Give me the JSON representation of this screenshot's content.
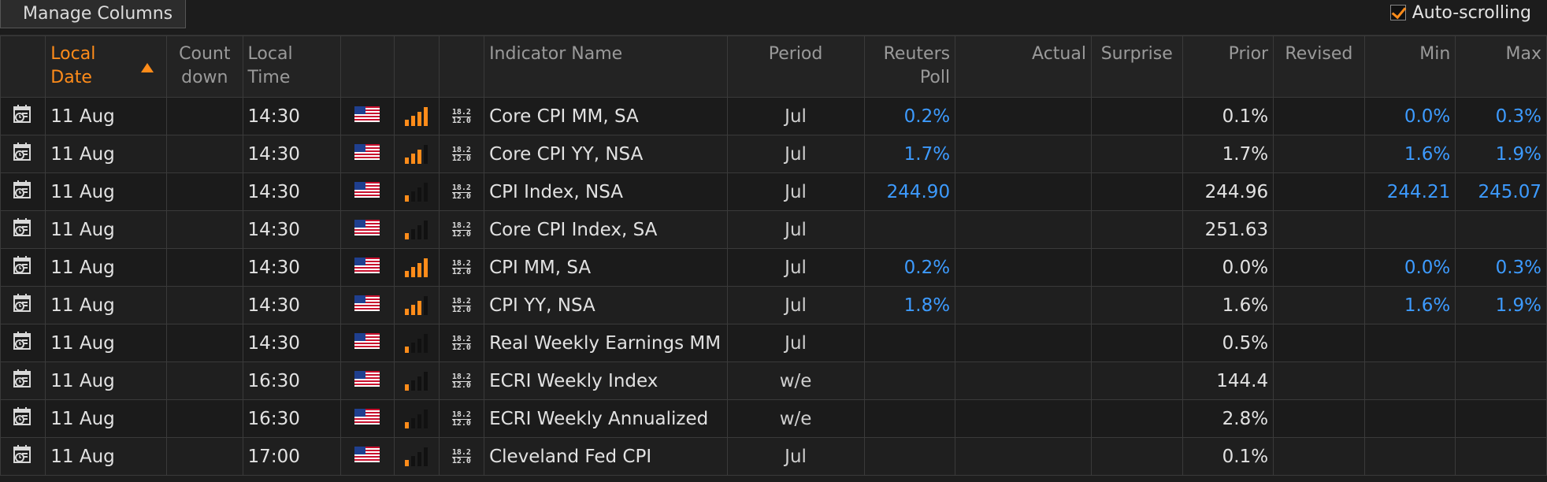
{
  "toolbar": {
    "manage_columns_label": "Manage Columns",
    "auto_scroll_label": "Auto-scrolling",
    "auto_scroll_checked": true
  },
  "columns": {
    "local_date": "Local Date",
    "countdown": "Count down",
    "local_time": "Local Time",
    "indicator": "Indicator Name",
    "period": "Period",
    "poll": "Reuters Poll",
    "actual": "Actual",
    "surprise": "Surprise",
    "prior": "Prior",
    "revised": "Revised",
    "min": "Min",
    "max": "Max"
  },
  "colors": {
    "accent": "#ff8c1a",
    "value_blue": "#3d9bff",
    "bar_inactive": "#111111"
  },
  "rows": [
    {
      "date": "11 Aug",
      "countdown": "",
      "time": "14:30",
      "importance": 3,
      "bar_color": "#ff8c1a",
      "name": "Core CPI MM, SA",
      "period": "Jul",
      "poll": "0.2%",
      "actual": "",
      "surprise": "",
      "prior": "0.1%",
      "revised": "",
      "min": "0.0%",
      "max": "0.3%"
    },
    {
      "date": "11 Aug",
      "countdown": "",
      "time": "14:30",
      "importance": 2,
      "bar_color": "#ff8c1a",
      "name": "Core CPI YY, NSA",
      "period": "Jul",
      "poll": "1.7%",
      "actual": "",
      "surprise": "",
      "prior": "1.7%",
      "revised": "",
      "min": "1.6%",
      "max": "1.9%"
    },
    {
      "date": "11 Aug",
      "countdown": "",
      "time": "14:30",
      "importance": 1,
      "bar_color": "#ff8c1a",
      "name": "CPI Index, NSA",
      "period": "Jul",
      "poll": "244.90",
      "actual": "",
      "surprise": "",
      "prior": "244.96",
      "revised": "",
      "min": "244.21",
      "max": "245.07"
    },
    {
      "date": "11 Aug",
      "countdown": "",
      "time": "14:30",
      "importance": 1,
      "bar_color": "#ff8c1a",
      "name": "Core CPI Index, SA",
      "period": "Jul",
      "poll": "",
      "actual": "",
      "surprise": "",
      "prior": "251.63",
      "revised": "",
      "min": "",
      "max": ""
    },
    {
      "date": "11 Aug",
      "countdown": "",
      "time": "14:30",
      "importance": 3,
      "bar_color": "#ff8c1a",
      "name": "CPI MM, SA",
      "period": "Jul",
      "poll": "0.2%",
      "actual": "",
      "surprise": "",
      "prior": "0.0%",
      "revised": "",
      "min": "0.0%",
      "max": "0.3%"
    },
    {
      "date": "11 Aug",
      "countdown": "",
      "time": "14:30",
      "importance": 2,
      "bar_color": "#ff8c1a",
      "name": "CPI YY, NSA",
      "period": "Jul",
      "poll": "1.8%",
      "actual": "",
      "surprise": "",
      "prior": "1.6%",
      "revised": "",
      "min": "1.6%",
      "max": "1.9%"
    },
    {
      "date": "11 Aug",
      "countdown": "",
      "time": "14:30",
      "importance": 1,
      "bar_color": "#ff8c1a",
      "name": "Real Weekly Earnings MM",
      "period": "Jul",
      "poll": "",
      "actual": "",
      "surprise": "",
      "prior": "0.5%",
      "revised": "",
      "min": "",
      "max": ""
    },
    {
      "date": "11 Aug",
      "countdown": "",
      "time": "16:30",
      "importance": 1,
      "bar_color": "#ff8c1a",
      "name": "ECRI Weekly Index",
      "period": "w/e",
      "poll": "",
      "actual": "",
      "surprise": "",
      "prior": "144.4",
      "revised": "",
      "min": "",
      "max": ""
    },
    {
      "date": "11 Aug",
      "countdown": "",
      "time": "16:30",
      "importance": 1,
      "bar_color": "#ff8c1a",
      "name": "ECRI Weekly Annualized",
      "period": "w/e",
      "poll": "",
      "actual": "",
      "surprise": "",
      "prior": "2.8%",
      "revised": "",
      "min": "",
      "max": ""
    },
    {
      "date": "11 Aug",
      "countdown": "",
      "time": "17:00",
      "importance": 1,
      "bar_color": "#ff8c1a",
      "name": "Cleveland Fed CPI",
      "period": "Jul",
      "poll": "",
      "actual": "",
      "surprise": "",
      "prior": "0.1%",
      "revised": "",
      "min": "",
      "max": ""
    }
  ]
}
